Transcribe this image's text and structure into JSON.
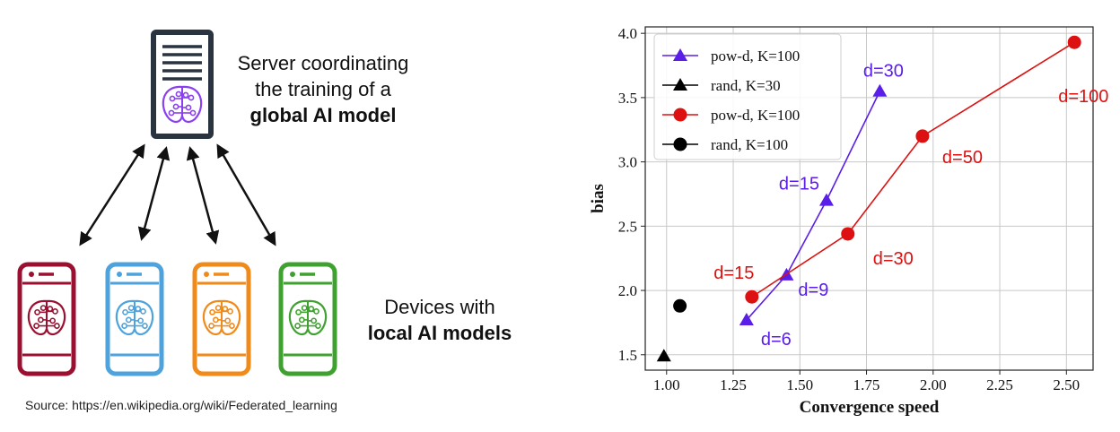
{
  "diagram": {
    "server_caption": [
      "Server coordinating",
      "the training of a",
      "global AI model"
    ],
    "device_caption": [
      "Devices with",
      "local AI models"
    ],
    "source": "Source: https://en.wikipedia.org/wiki/Federated_learning",
    "devices": [
      {
        "color": "#9b1030"
      },
      {
        "color": "#4ea3dd"
      },
      {
        "color": "#f08a1a"
      },
      {
        "color": "#3fa12f"
      }
    ],
    "server_brain_color": "#8a3ff0",
    "server_color": "#2a3340"
  },
  "chart_data": {
    "type": "scatter",
    "xlabel": "Convergence speed",
    "ylabel": "bias",
    "xlim": [
      0.92,
      2.6
    ],
    "ylim": [
      1.38,
      4.05
    ],
    "xticks": [
      "1.00",
      "1.25",
      "1.50",
      "1.75",
      "2.00",
      "2.25",
      "2.50"
    ],
    "yticks": [
      "1.5",
      "2.0",
      "2.5",
      "3.0",
      "3.5",
      "4.0"
    ],
    "grid": true,
    "legend_position": "top-left",
    "series": [
      {
        "name": "pow-d, K=100",
        "marker": "triangle",
        "color": "#5a1ee8",
        "line": true,
        "x": [
          1.3,
          1.45,
          1.6,
          1.8
        ],
        "y": [
          1.77,
          2.12,
          2.7,
          3.55
        ],
        "labels": [
          "d=6",
          "d=9",
          "d=15",
          "d=30"
        ]
      },
      {
        "name": "rand, K=30",
        "marker": "triangle",
        "color": "#000000",
        "line": false,
        "x": [
          0.99
        ],
        "y": [
          1.49
        ],
        "labels": []
      },
      {
        "name": "pow-d, K=100",
        "marker": "circle",
        "color": "#dd1111",
        "line": true,
        "x": [
          1.32,
          1.68,
          1.96,
          2.53
        ],
        "y": [
          1.95,
          2.44,
          3.2,
          3.93
        ],
        "labels": [
          "d=15",
          "d=30",
          "d=50",
          "d=100"
        ]
      },
      {
        "name": "rand, K=100",
        "marker": "circle",
        "color": "#000000",
        "line": false,
        "x": [
          1.05
        ],
        "y": [
          1.88
        ],
        "labels": []
      }
    ]
  }
}
